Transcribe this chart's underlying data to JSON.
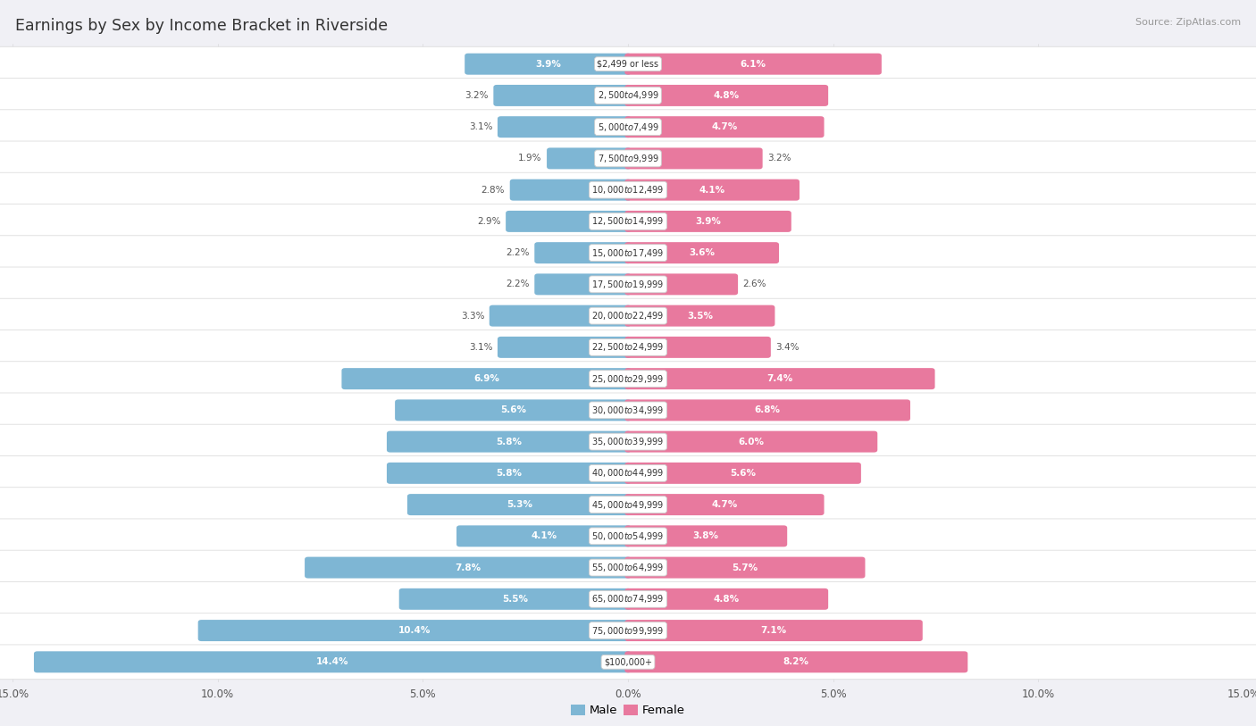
{
  "title": "Earnings by Sex by Income Bracket in Riverside",
  "source": "Source: ZipAtlas.com",
  "categories": [
    "$2,499 or less",
    "$2,500 to $4,999",
    "$5,000 to $7,499",
    "$7,500 to $9,999",
    "$10,000 to $12,499",
    "$12,500 to $14,999",
    "$15,000 to $17,499",
    "$17,500 to $19,999",
    "$20,000 to $22,499",
    "$22,500 to $24,999",
    "$25,000 to $29,999",
    "$30,000 to $34,999",
    "$35,000 to $39,999",
    "$40,000 to $44,999",
    "$45,000 to $49,999",
    "$50,000 to $54,999",
    "$55,000 to $64,999",
    "$65,000 to $74,999",
    "$75,000 to $99,999",
    "$100,000+"
  ],
  "male": [
    3.9,
    3.2,
    3.1,
    1.9,
    2.8,
    2.9,
    2.2,
    2.2,
    3.3,
    3.1,
    6.9,
    5.6,
    5.8,
    5.8,
    5.3,
    4.1,
    7.8,
    5.5,
    10.4,
    14.4
  ],
  "female": [
    6.1,
    4.8,
    4.7,
    3.2,
    4.1,
    3.9,
    3.6,
    2.6,
    3.5,
    3.4,
    7.4,
    6.8,
    6.0,
    5.6,
    4.7,
    3.8,
    5.7,
    4.8,
    7.1,
    8.2
  ],
  "male_color": "#7eb6d4",
  "female_color": "#e8799e",
  "xlim": 15.0,
  "row_bg_color": "#ffffff",
  "fig_bg_color": "#f0f0f5",
  "label_inside_color": "#ffffff",
  "label_outside_color": "#555555",
  "inside_threshold_male": 3.5,
  "inside_threshold_female": 3.5,
  "xticks": [
    -15.0,
    -10.0,
    -5.0,
    0.0,
    5.0,
    10.0,
    15.0
  ],
  "xtick_labels": [
    "15.0%",
    "10.0%",
    "5.0%",
    "0.0%",
    "5.0%",
    "10.0%",
    "15.0%"
  ]
}
